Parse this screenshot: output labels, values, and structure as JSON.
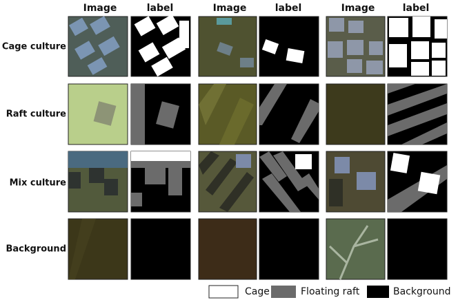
{
  "columns": [
    {
      "image": "Image",
      "label": "label"
    },
    {
      "image": "Image",
      "label": "label"
    },
    {
      "image": "Image",
      "label": "label"
    }
  ],
  "rows": [
    "Cage culture",
    "Raft culture",
    "Mix culture",
    "Background"
  ],
  "legend": [
    "Cage",
    "Floating raft",
    "Background"
  ]
}
